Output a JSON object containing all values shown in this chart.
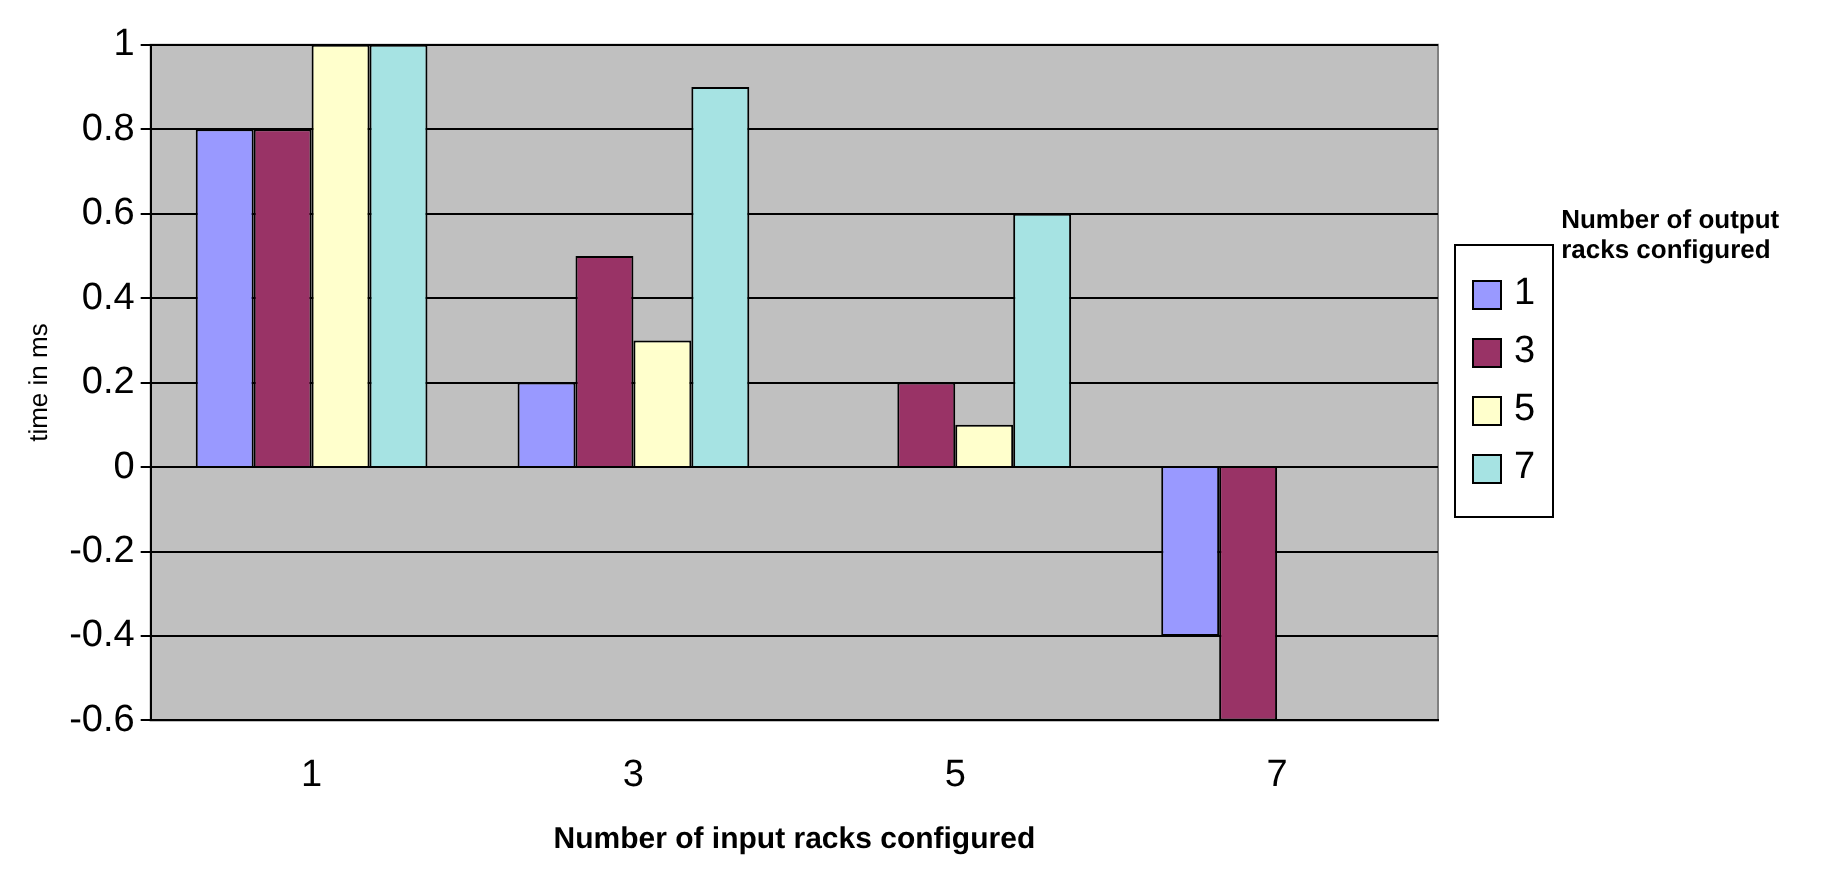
{
  "chart_data": {
    "type": "bar",
    "xlabel": "Number of input racks configured",
    "ylabel": "time in ms",
    "legend_title": "Number of output racks configured",
    "categories": [
      "1",
      "3",
      "5",
      "7"
    ],
    "series": [
      {
        "name": "1",
        "color": "#9999ff",
        "values": [
          0.8,
          0.2,
          null,
          -0.4
        ]
      },
      {
        "name": "3",
        "color": "#993366",
        "values": [
          0.8,
          0.5,
          0.2,
          -0.6
        ]
      },
      {
        "name": "5",
        "color": "#ffffcc",
        "values": [
          1,
          0.3,
          0.1,
          null
        ]
      },
      {
        "name": "7",
        "color": "#a6e3e3",
        "values": [
          1,
          0.9,
          0.6,
          null
        ]
      }
    ],
    "ylim": [
      -0.6,
      1
    ],
    "yticks": [
      -0.6,
      -0.4,
      -0.2,
      0,
      0.2,
      0.4,
      0.6,
      0.8,
      1
    ],
    "grid": "y",
    "legend": "right"
  }
}
